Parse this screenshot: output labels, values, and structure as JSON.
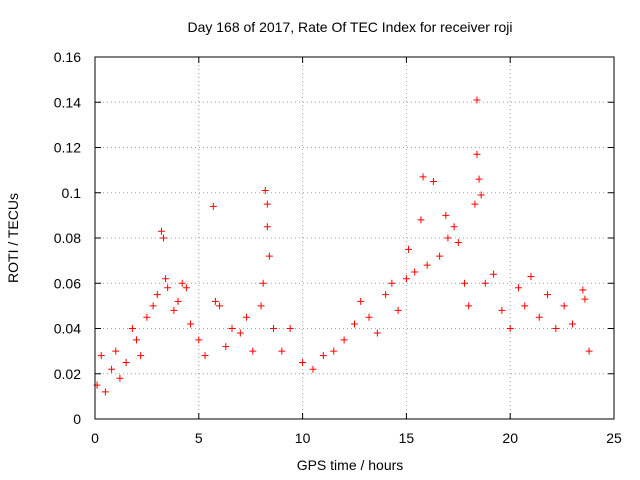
{
  "chart_data": {
    "type": "scatter",
    "title": "Day 168 of 2017, Rate Of TEC Index for receiver roji",
    "xlabel": "GPS time / hours",
    "ylabel": "ROTI / TECUs",
    "xlim": [
      0,
      25
    ],
    "ylim": [
      0,
      0.16
    ],
    "xticks": [
      0,
      5,
      10,
      15,
      20,
      25
    ],
    "xtick_labels": [
      "0",
      "5",
      "10",
      "15",
      "20",
      "25"
    ],
    "yticks": [
      0,
      0.02,
      0.04,
      0.06,
      0.08,
      0.1,
      0.12,
      0.14,
      0.16
    ],
    "ytick_labels": [
      "0",
      "0.02",
      "0.04",
      "0.06",
      "0.08",
      "0.1",
      "0.12",
      "0.14",
      "0.16"
    ],
    "grid": true,
    "marker": "+",
    "color": "#ff0000",
    "series": [
      {
        "name": "ROTI",
        "points": [
          [
            0.1,
            0.015
          ],
          [
            0.3,
            0.028
          ],
          [
            0.5,
            0.012
          ],
          [
            0.8,
            0.022
          ],
          [
            1.0,
            0.03
          ],
          [
            1.2,
            0.018
          ],
          [
            1.5,
            0.025
          ],
          [
            1.8,
            0.04
          ],
          [
            2.0,
            0.035
          ],
          [
            2.2,
            0.028
          ],
          [
            2.5,
            0.045
          ],
          [
            2.8,
            0.05
          ],
          [
            3.0,
            0.055
          ],
          [
            3.2,
            0.083
          ],
          [
            3.3,
            0.08
          ],
          [
            3.4,
            0.062
          ],
          [
            3.5,
            0.058
          ],
          [
            3.8,
            0.048
          ],
          [
            4.0,
            0.052
          ],
          [
            4.2,
            0.06
          ],
          [
            4.4,
            0.058
          ],
          [
            4.6,
            0.042
          ],
          [
            5.0,
            0.035
          ],
          [
            5.3,
            0.028
          ],
          [
            5.7,
            0.094
          ],
          [
            5.8,
            0.052
          ],
          [
            6.0,
            0.05
          ],
          [
            6.3,
            0.032
          ],
          [
            6.6,
            0.04
          ],
          [
            7.0,
            0.038
          ],
          [
            7.3,
            0.045
          ],
          [
            7.6,
            0.03
          ],
          [
            8.0,
            0.05
          ],
          [
            8.1,
            0.06
          ],
          [
            8.2,
            0.101
          ],
          [
            8.3,
            0.095
          ],
          [
            8.3,
            0.085
          ],
          [
            8.4,
            0.072
          ],
          [
            8.6,
            0.04
          ],
          [
            9.0,
            0.03
          ],
          [
            9.4,
            0.04
          ],
          [
            10.0,
            0.025
          ],
          [
            10.5,
            0.022
          ],
          [
            11.0,
            0.028
          ],
          [
            11.5,
            0.03
          ],
          [
            12.0,
            0.035
          ],
          [
            12.5,
            0.042
          ],
          [
            12.8,
            0.052
          ],
          [
            13.2,
            0.045
          ],
          [
            13.6,
            0.038
          ],
          [
            14.0,
            0.055
          ],
          [
            14.3,
            0.06
          ],
          [
            14.6,
            0.048
          ],
          [
            15.0,
            0.062
          ],
          [
            15.1,
            0.075
          ],
          [
            15.4,
            0.065
          ],
          [
            15.7,
            0.088
          ],
          [
            15.8,
            0.107
          ],
          [
            16.0,
            0.068
          ],
          [
            16.3,
            0.105
          ],
          [
            16.6,
            0.072
          ],
          [
            16.9,
            0.09
          ],
          [
            17.0,
            0.08
          ],
          [
            17.3,
            0.085
          ],
          [
            17.5,
            0.078
          ],
          [
            17.8,
            0.06
          ],
          [
            18.0,
            0.05
          ],
          [
            18.3,
            0.095
          ],
          [
            18.4,
            0.117
          ],
          [
            18.4,
            0.141
          ],
          [
            18.5,
            0.106
          ],
          [
            18.6,
            0.099
          ],
          [
            18.8,
            0.06
          ],
          [
            19.2,
            0.064
          ],
          [
            19.6,
            0.048
          ],
          [
            20.0,
            0.04
          ],
          [
            20.4,
            0.058
          ],
          [
            20.7,
            0.05
          ],
          [
            21.0,
            0.063
          ],
          [
            21.4,
            0.045
          ],
          [
            21.8,
            0.055
          ],
          [
            22.2,
            0.04
          ],
          [
            22.6,
            0.05
          ],
          [
            23.0,
            0.042
          ],
          [
            23.5,
            0.057
          ],
          [
            23.6,
            0.053
          ],
          [
            23.8,
            0.03
          ]
        ]
      }
    ]
  }
}
